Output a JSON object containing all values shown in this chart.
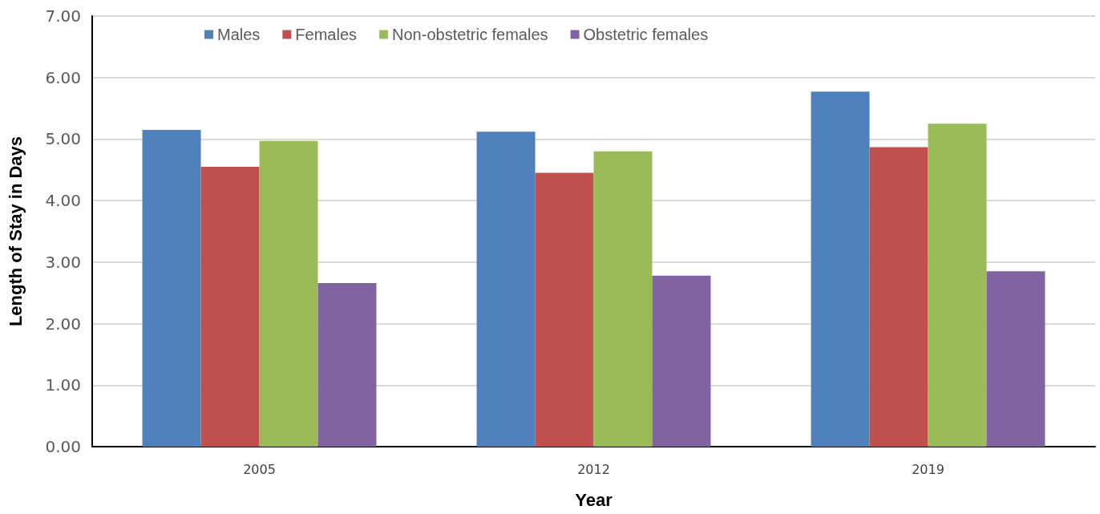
{
  "chart_data": {
    "type": "bar",
    "xlabel": "Year",
    "ylabel": "Length of Stay in Days",
    "categories": [
      "2005",
      "2012",
      "2019"
    ],
    "series": [
      {
        "name": "Males",
        "color": "#4f81bd",
        "values": [
          5.15,
          5.12,
          5.77
        ]
      },
      {
        "name": "Females",
        "color": "#c0504d",
        "values": [
          4.55,
          4.45,
          4.87
        ]
      },
      {
        "name": "Non-obstetric females",
        "color": "#9bbb59",
        "values": [
          4.97,
          4.8,
          5.25
        ]
      },
      {
        "name": "Obstetric females",
        "color": "#8064a2",
        "values": [
          2.66,
          2.78,
          2.85
        ]
      }
    ],
    "ylim": [
      0,
      7
    ],
    "yticks": [
      {
        "value": 0,
        "label": "0.00"
      },
      {
        "value": 1,
        "label": "1.00"
      },
      {
        "value": 2,
        "label": "2.00"
      },
      {
        "value": 3,
        "label": "3.00"
      },
      {
        "value": 4,
        "label": "4.00"
      },
      {
        "value": 5,
        "label": "5.00"
      },
      {
        "value": 6,
        "label": "6.00"
      },
      {
        "value": 7,
        "label": "7.00"
      }
    ],
    "grid": "y",
    "legend": "top"
  }
}
